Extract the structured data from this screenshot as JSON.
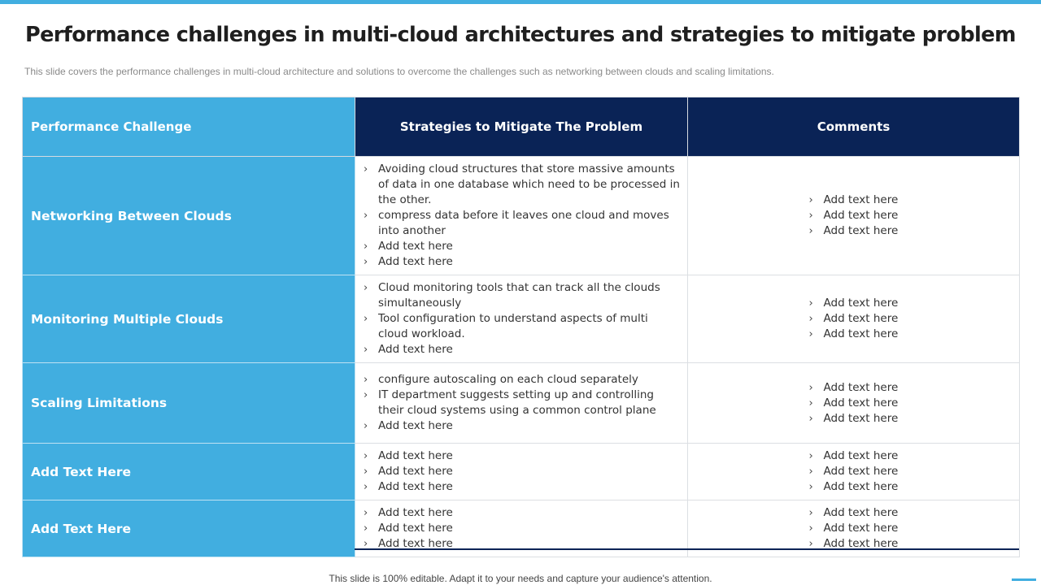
{
  "title": "Performance challenges in multi-cloud architectures and strategies to mitigate problem",
  "subtitle": "This slide covers the performance  challenges in multi-cloud architecture and solutions to overcome  the challenges such as networking between clouds and scaling limitations.",
  "table": {
    "headers": [
      "Performance Challenge",
      "Strategies to Mitigate The Problem",
      "Comments"
    ],
    "rows": [
      {
        "challenge": "Networking Between Clouds",
        "strategies": [
          "Avoiding cloud structures that store massive amounts of data in one database which need to be processed in the other.",
          "compress data before it leaves one cloud and moves into another",
          "Add text here",
          "Add text here"
        ],
        "comments": [
          "Add text here",
          "Add text here",
          "Add text here"
        ]
      },
      {
        "challenge": "Monitoring Multiple Clouds",
        "strategies": [
          "Cloud monitoring  tools that can track all the clouds simultaneously",
          "Tool configuration to understand aspects of multi cloud workload.",
          "Add text here"
        ],
        "comments": [
          "Add text here",
          "Add text here",
          "Add text here"
        ]
      },
      {
        "challenge": " Scaling Limitations",
        "strategies": [
          "configure autoscaling on each cloud separately",
          "IT department  suggests setting up and controlling their cloud systems using a common  control plane",
          "Add text here"
        ],
        "comments": [
          "Add text here",
          "Add text here",
          "Add text here"
        ]
      },
      {
        "challenge": "Add Text Here",
        "strategies": [
          "Add text here",
          "Add text here",
          "Add text here"
        ],
        "comments": [
          "Add text here",
          "Add text here",
          "Add text here"
        ]
      },
      {
        "challenge": "Add Text Here",
        "strategies": [
          "Add text here",
          "Add text here",
          "Add text here"
        ],
        "comments": [
          "Add text here",
          "Add text here",
          "Add text here"
        ]
      }
    ]
  },
  "bullet_glyph": "›",
  "footer": "This slide is 100% editable. Adapt it to your needs and capture your audience's attention.",
  "colors": {
    "accent_light_blue": "#41aee0",
    "header_navy": "#0a2356"
  }
}
